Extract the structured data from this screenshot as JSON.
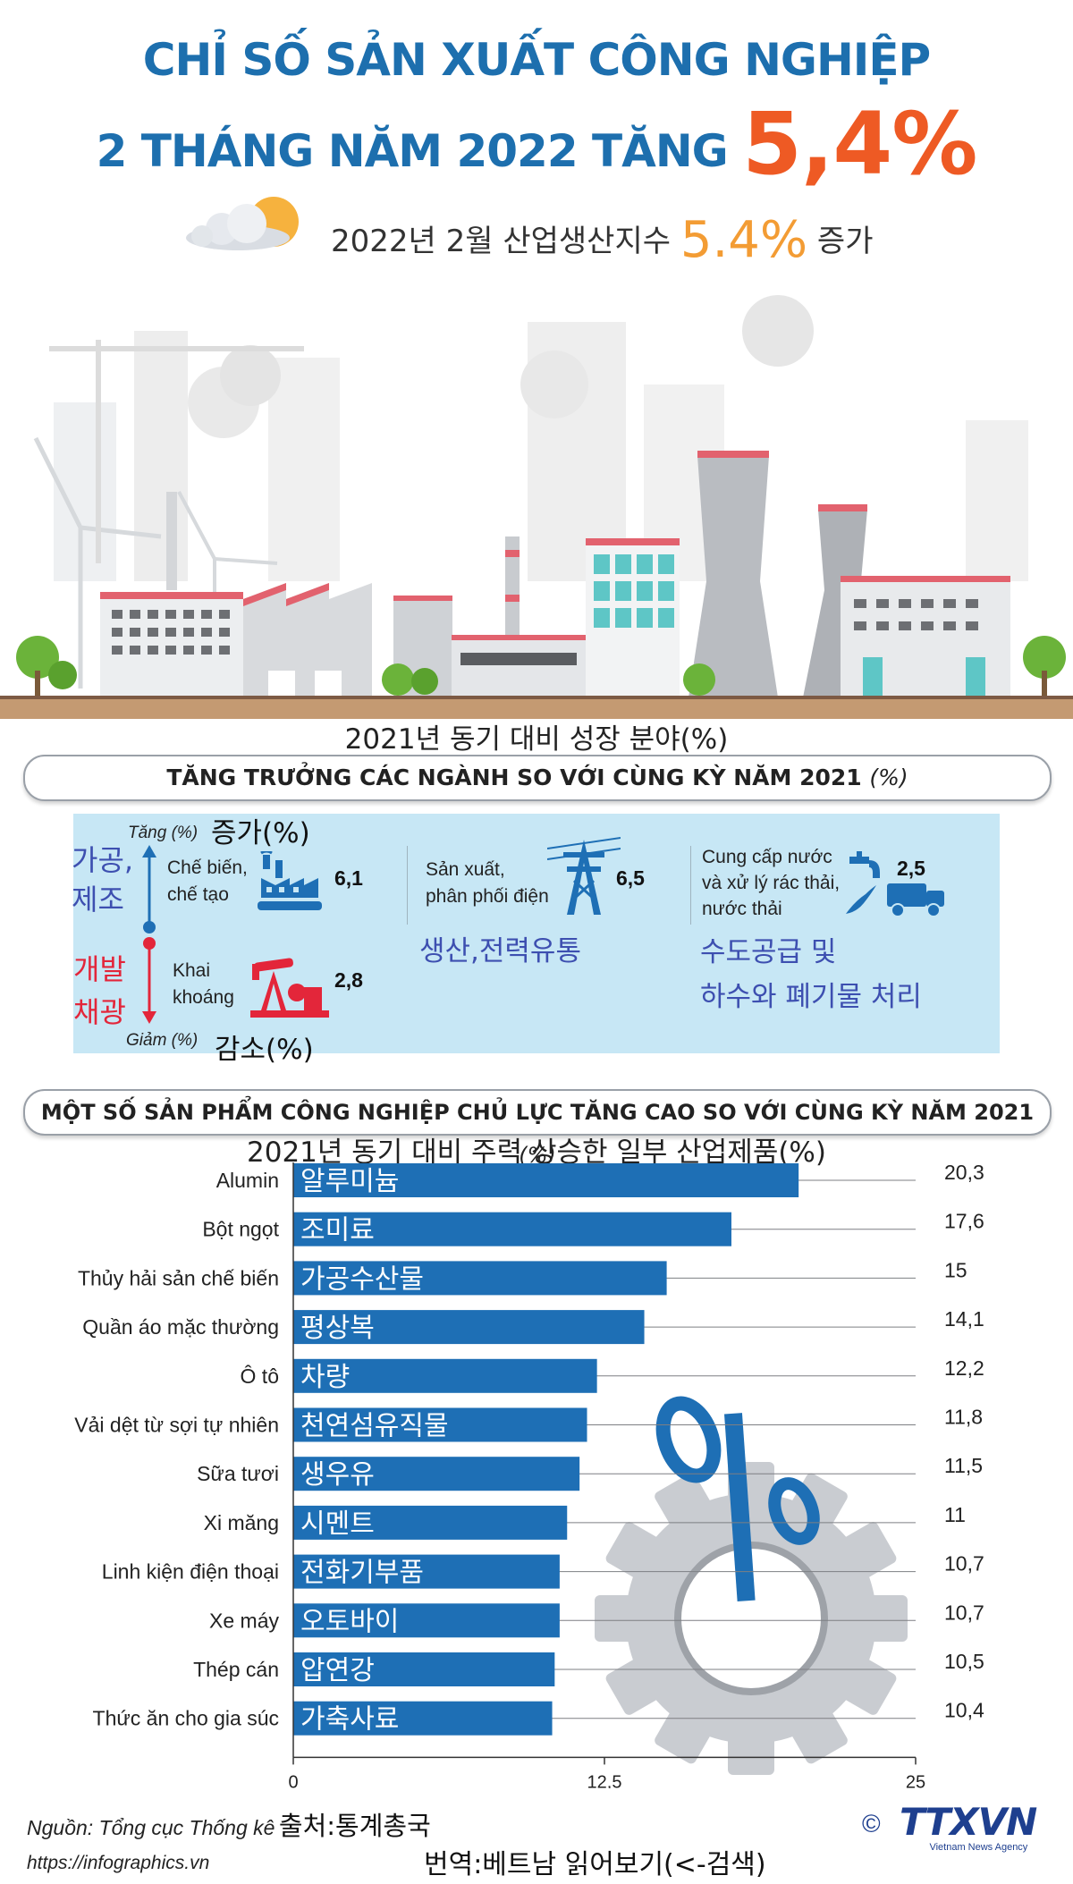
{
  "header": {
    "title_line1": "CHỈ SỐ SẢN XUẤT CÔNG NGHIỆP",
    "title_line2": "2 THÁNG NĂM 2022 TĂNG",
    "title_highlight": "5,4%",
    "korean_prefix": "2022년 2월 산업생산지수",
    "korean_value": "5.4%",
    "korean_suffix": "증가",
    "accent_color": "#ee5a24",
    "title_color": "#1d6fae"
  },
  "sector": {
    "korean_heading": "2021년 동기 대비 성장 분야(%)",
    "heading": "TĂNG TRƯỞNG CÁC NGÀNH SO VỚI CÙNG KỲ NĂM 2021",
    "heading_unit": "(%)",
    "increase_label": "Tăng (%)",
    "increase_korean": "증가(%)",
    "decrease_label": "Giảm (%)",
    "decrease_korean": "감소(%)",
    "items": [
      {
        "name": "Chế biến, chế tạo",
        "line1": "Chế biến,",
        "line2": "chế tạo",
        "value": "6,1",
        "korean": "가공, 제조",
        "korean1": "가공,",
        "korean2": "제조",
        "icon": "factory-icon"
      },
      {
        "name": "Khai khoáng",
        "line1": "Khai",
        "line2": "khoáng",
        "value": "2,8",
        "korean": "개발 채광",
        "korean1": "개발",
        "korean2": "채광",
        "icon": "oil-pump-icon"
      },
      {
        "name": "Sản xuất, phân phối điện",
        "line1": "Sản xuất,",
        "line2": "phân phối điện",
        "value": "6,5",
        "korean": "생산,전력유통",
        "icon": "power-tower-icon"
      },
      {
        "name": "Cung cấp nước và xử lý rác thải, nước thải",
        "line1": "Cung cấp nước",
        "line2": "và xử lý rác thải,",
        "line3": "nước thải",
        "value": "2,5",
        "korean1": "수도공급 및",
        "korean2": "하수와 폐기물 처리",
        "icon": "water-truck-icon"
      }
    ]
  },
  "products": {
    "heading": "MỘT SỐ SẢN PHẨM CÔNG NGHIỆP CHỦ LỰC TĂNG CAO SO VỚI CÙNG KỲ NĂM 2021",
    "heading_unit": "(%)",
    "korean_heading": "2021년 동기 대비 주력 상승한 일부 산업제품(%)"
  },
  "chart_data": {
    "type": "bar",
    "orientation": "horizontal",
    "categories": [
      "Alumin",
      "Bột ngọt",
      "Thủy hải sản chế biến",
      "Quần áo mặc thường",
      "Ô tô",
      "Vải dệt từ sợi tự nhiên",
      "Sữa tươi",
      "Xi măng",
      "Linh kiện điện thoại",
      "Xe  máy",
      "Thép cán",
      "Thức ăn cho gia súc"
    ],
    "korean_labels": [
      "알루미늄",
      "조미료",
      "가공수산물",
      "평상복",
      "차량",
      "천연섬유직물",
      "생우유",
      "시멘트",
      "전화기부품",
      "오토바이",
      "압연강",
      "가축사료"
    ],
    "values": [
      20.3,
      17.6,
      15,
      14.1,
      12.2,
      11.8,
      11.5,
      11,
      10.7,
      10.7,
      10.5,
      10.4
    ],
    "value_labels": [
      "20,3",
      "17,6",
      "15",
      "14,1",
      "12,2",
      "11,8",
      "11,5",
      "11",
      "10,7",
      "10,7",
      "10,5",
      "10,4"
    ],
    "xlim": [
      0,
      25
    ],
    "xticks": [
      0,
      12.5,
      25
    ],
    "xtick_labels": [
      "0",
      "12,5",
      "25"
    ],
    "bar_color": "#1e6fb5",
    "grid": true
  },
  "footer": {
    "source": "Nguồn: Tổng cục Thống kê",
    "source_korean": "출처:통계총국",
    "url": "https://infographics.vn",
    "translation_note": "번역:베트남 읽어보기(<-검색)",
    "copyright": "©",
    "logo": "TTXVN",
    "logo_sub": "Vietnam News Agency"
  }
}
